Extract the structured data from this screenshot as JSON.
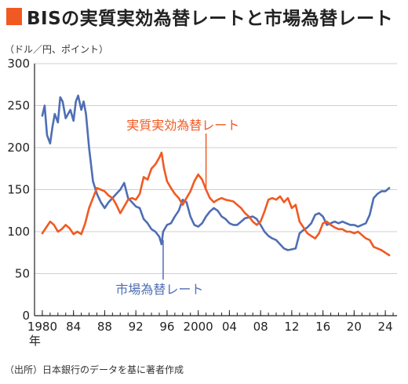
{
  "header": {
    "title": "BISの実質実効為替レートと市場為替レート",
    "unit": "（ドル／円、ポイント）",
    "source": "（出所）日本銀行のデータを基に著者作成"
  },
  "colors": {
    "accent": "#f05a22",
    "real_effective": "#f05a22",
    "market": "#4f6eb4",
    "grid": "#cfcfcf",
    "axis": "#222222"
  },
  "chart_data": {
    "type": "line",
    "title": "BISの実質実効為替レートと市場為替レート",
    "ylabel": "（ドル／円、ポイント）",
    "ylim": [
      0,
      300
    ],
    "yticks": [
      0,
      50,
      100,
      150,
      200,
      250,
      300
    ],
    "xlim": [
      1979.0,
      2025.5
    ],
    "xticks": [
      {
        "value": 1980,
        "label": "1980"
      },
      {
        "value": 1984,
        "label": "84"
      },
      {
        "value": 1988,
        "label": "88"
      },
      {
        "value": 1992,
        "label": "92"
      },
      {
        "value": 1996,
        "label": "96"
      },
      {
        "value": 2000,
        "label": "2000"
      },
      {
        "value": 2004,
        "label": "04"
      },
      {
        "value": 2008,
        "label": "08"
      },
      {
        "value": 2012,
        "label": "12"
      },
      {
        "value": 2016,
        "label": "16"
      },
      {
        "value": 2020,
        "label": "20"
      },
      {
        "value": 2024,
        "label": "24"
      }
    ],
    "xlabel_suffix": "年",
    "grid": true,
    "series": [
      {
        "name": "実質実効為替レート",
        "x": [
          1980.0,
          1980.5,
          1981.0,
          1981.5,
          1982.0,
          1982.5,
          1983.0,
          1983.5,
          1984.0,
          1984.5,
          1985.0,
          1985.5,
          1986.0,
          1986.5,
          1987.0,
          1987.5,
          1988.0,
          1988.5,
          1989.0,
          1989.5,
          1990.0,
          1990.5,
          1991.0,
          1991.5,
          1992.0,
          1992.5,
          1993.0,
          1993.5,
          1994.0,
          1994.5,
          1995.0,
          1995.3,
          1995.6,
          1996.0,
          1996.5,
          1997.0,
          1997.5,
          1998.0,
          1998.5,
          1999.0,
          1999.5,
          2000.0,
          2000.5,
          2001.0,
          2001.5,
          2002.0,
          2002.5,
          2003.0,
          2003.5,
          2004.0,
          2004.5,
          2005.0,
          2005.5,
          2006.0,
          2006.5,
          2007.0,
          2007.5,
          2008.0,
          2008.5,
          2009.0,
          2009.5,
          2010.0,
          2010.5,
          2011.0,
          2011.5,
          2012.0,
          2012.5,
          2013.0,
          2013.5,
          2014.0,
          2014.5,
          2015.0,
          2015.5,
          2016.0,
          2016.5,
          2017.0,
          2017.5,
          2018.0,
          2018.5,
          2019.0,
          2019.5,
          2020.0,
          2020.5,
          2021.0,
          2021.5,
          2022.0,
          2022.5,
          2023.0,
          2023.5,
          2024.0,
          2024.5
        ],
        "values": [
          98,
          105,
          112,
          108,
          100,
          103,
          108,
          104,
          97,
          100,
          97,
          110,
          128,
          140,
          152,
          150,
          148,
          143,
          140,
          132,
          122,
          130,
          138,
          140,
          138,
          145,
          165,
          162,
          175,
          180,
          188,
          194,
          176,
          160,
          152,
          145,
          140,
          132,
          140,
          148,
          160,
          168,
          162,
          150,
          140,
          135,
          138,
          140,
          138,
          137,
          136,
          132,
          128,
          122,
          118,
          112,
          108,
          112,
          124,
          138,
          140,
          138,
          142,
          135,
          140,
          128,
          132,
          112,
          105,
          98,
          95,
          92,
          98,
          110,
          112,
          108,
          105,
          103,
          103,
          100,
          100,
          98,
          100,
          96,
          92,
          90,
          82,
          80,
          78,
          75,
          72
        ]
      },
      {
        "name": "市場為替レート",
        "x": [
          1980.0,
          1980.3,
          1980.6,
          1981.0,
          1981.3,
          1981.6,
          1982.0,
          1982.3,
          1982.6,
          1983.0,
          1983.3,
          1983.6,
          1984.0,
          1984.3,
          1984.6,
          1985.0,
          1985.3,
          1985.6,
          1986.0,
          1986.5,
          1987.0,
          1987.5,
          1988.0,
          1988.5,
          1989.0,
          1989.5,
          1990.0,
          1990.5,
          1991.0,
          1991.5,
          1992.0,
          1992.5,
          1993.0,
          1993.5,
          1994.0,
          1994.5,
          1995.0,
          1995.3,
          1995.5,
          1996.0,
          1996.5,
          1997.0,
          1997.5,
          1998.0,
          1998.5,
          1999.0,
          1999.5,
          2000.0,
          2000.5,
          2001.0,
          2001.5,
          2002.0,
          2002.5,
          2003.0,
          2003.5,
          2004.0,
          2004.5,
          2005.0,
          2005.5,
          2006.0,
          2006.5,
          2007.0,
          2007.5,
          2008.0,
          2008.5,
          2009.0,
          2009.5,
          2010.0,
          2010.5,
          2011.0,
          2011.5,
          2012.0,
          2012.5,
          2013.0,
          2013.5,
          2014.0,
          2014.5,
          2015.0,
          2015.5,
          2016.0,
          2016.5,
          2017.0,
          2017.5,
          2018.0,
          2018.5,
          2019.0,
          2019.5,
          2020.0,
          2020.5,
          2021.0,
          2021.5,
          2022.0,
          2022.5,
          2023.0,
          2023.5,
          2024.0,
          2024.5
        ],
        "values": [
          238,
          250,
          215,
          205,
          225,
          240,
          230,
          260,
          255,
          235,
          240,
          245,
          232,
          255,
          262,
          245,
          255,
          240,
          200,
          160,
          145,
          135,
          128,
          135,
          140,
          145,
          150,
          158,
          140,
          135,
          130,
          128,
          115,
          110,
          103,
          100,
          94,
          85,
          100,
          108,
          110,
          118,
          125,
          138,
          135,
          118,
          108,
          106,
          110,
          118,
          124,
          128,
          125,
          118,
          115,
          110,
          108,
          108,
          112,
          116,
          117,
          118,
          115,
          108,
          100,
          95,
          92,
          90,
          85,
          80,
          78,
          79,
          80,
          98,
          102,
          105,
          110,
          120,
          122,
          118,
          108,
          110,
          112,
          110,
          112,
          110,
          108,
          108,
          106,
          108,
          110,
          120,
          140,
          145,
          148,
          148,
          152
        ]
      }
    ],
    "annotations": [
      {
        "text": "実質実効為替レート",
        "series": 0
      },
      {
        "text": "市場為替レート",
        "series": 1
      }
    ]
  }
}
